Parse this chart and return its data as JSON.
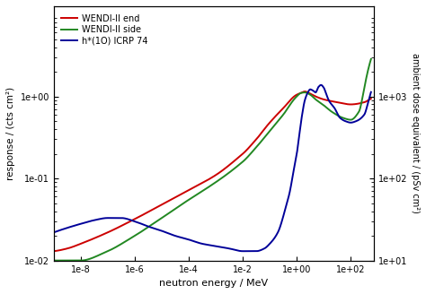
{
  "xlabel": "neutron energy / MeV",
  "ylabel_left": "response / (cts cm²)",
  "ylabel_right": "ambient dose equivalent / (pSv cm²)",
  "legend": [
    "WENDI-II end",
    "WENDI-II side",
    "h*(1O) ICRP 74"
  ],
  "colors": [
    "#cc0000",
    "#228822",
    "#000099"
  ],
  "wendi_end_x": [
    -9,
    -8.5,
    -8,
    -7,
    -6,
    -5,
    -4,
    -3,
    -2,
    -1.5,
    -1,
    -0.5,
    0,
    0.15,
    0.3,
    0.5,
    0.7,
    1.0,
    1.5,
    2.0,
    2.5,
    2.7
  ],
  "wendi_end_y": [
    0.013,
    0.014,
    0.016,
    0.022,
    0.032,
    0.048,
    0.072,
    0.11,
    0.2,
    0.3,
    0.48,
    0.72,
    1.05,
    1.1,
    1.15,
    1.08,
    1.0,
    0.92,
    0.85,
    0.8,
    0.85,
    0.92
  ],
  "wendi_side_x": [
    -9,
    -8.5,
    -8,
    -7,
    -6,
    -5,
    -4,
    -3,
    -2,
    -1.5,
    -1,
    -0.5,
    0,
    0.15,
    0.3,
    0.5,
    0.7,
    1.0,
    1.3,
    1.7,
    2.0,
    2.3,
    2.7
  ],
  "wendi_side_y": [
    0.01,
    0.01,
    0.01,
    0.013,
    0.02,
    0.033,
    0.055,
    0.09,
    0.16,
    0.24,
    0.38,
    0.6,
    1.0,
    1.1,
    1.12,
    1.05,
    0.92,
    0.78,
    0.65,
    0.55,
    0.52,
    0.65,
    2.5
  ],
  "h10_x": [
    -9,
    -8.5,
    -8,
    -7.5,
    -7,
    -6.5,
    -6,
    -5.5,
    -5,
    -4.5,
    -4,
    -3.5,
    -3,
    -2.5,
    -2,
    -1.8,
    -1.5,
    -1.2,
    -1.0,
    -0.7,
    -0.3,
    0,
    0.1,
    0.2,
    0.3,
    0.4,
    0.5,
    0.6,
    0.7,
    0.8,
    0.9,
    1.0,
    1.1,
    1.2,
    1.4,
    1.6,
    1.8,
    2.0,
    2.2,
    2.5,
    2.7
  ],
  "h10_y": [
    0.022,
    0.025,
    0.028,
    0.031,
    0.033,
    0.033,
    0.03,
    0.026,
    0.023,
    0.02,
    0.018,
    0.016,
    0.015,
    0.014,
    0.013,
    0.013,
    0.013,
    0.014,
    0.016,
    0.022,
    0.06,
    0.2,
    0.35,
    0.6,
    0.9,
    1.1,
    1.22,
    1.18,
    1.12,
    1.3,
    1.38,
    1.28,
    1.05,
    0.88,
    0.72,
    0.55,
    0.5,
    0.48,
    0.5,
    0.6,
    1.0
  ]
}
